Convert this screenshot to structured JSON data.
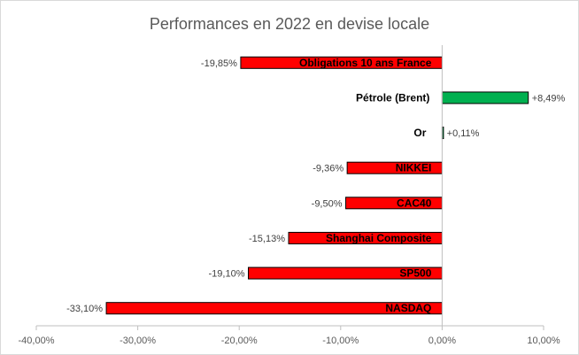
{
  "chart_data": {
    "type": "bar",
    "orientation": "horizontal",
    "title": "Performances  en 2022 en devise locale",
    "categories": [
      "Obligations 10 ans France",
      "Pétrole (Brent)",
      "Or",
      "NIKKEI",
      "CAC40",
      "Shanghai Composite",
      "SP500",
      "NASDAQ"
    ],
    "values": [
      -19.85,
      8.49,
      0.11,
      -9.36,
      -9.5,
      -15.13,
      -19.1,
      -33.1
    ],
    "value_labels": [
      "-19,85%",
      "+8,49%",
      "+0,11%",
      "-9,36%",
      "-9,50%",
      "-15,13%",
      "-19,10%",
      "-33,10%"
    ],
    "xlim": [
      -40,
      10
    ],
    "xticks": [
      -40,
      -30,
      -20,
      -10,
      0,
      10
    ],
    "xtick_labels": [
      "-40,00%",
      "-30,00%",
      "-20,00%",
      "-10,00%",
      "0,00%",
      "10,00%"
    ],
    "xlabel": "",
    "ylabel": "",
    "grid": false,
    "legend": "none",
    "colors": {
      "negative": "#ff0000",
      "positive": "#00b050",
      "border": "#000000",
      "axis": "#bfbfbf"
    }
  }
}
